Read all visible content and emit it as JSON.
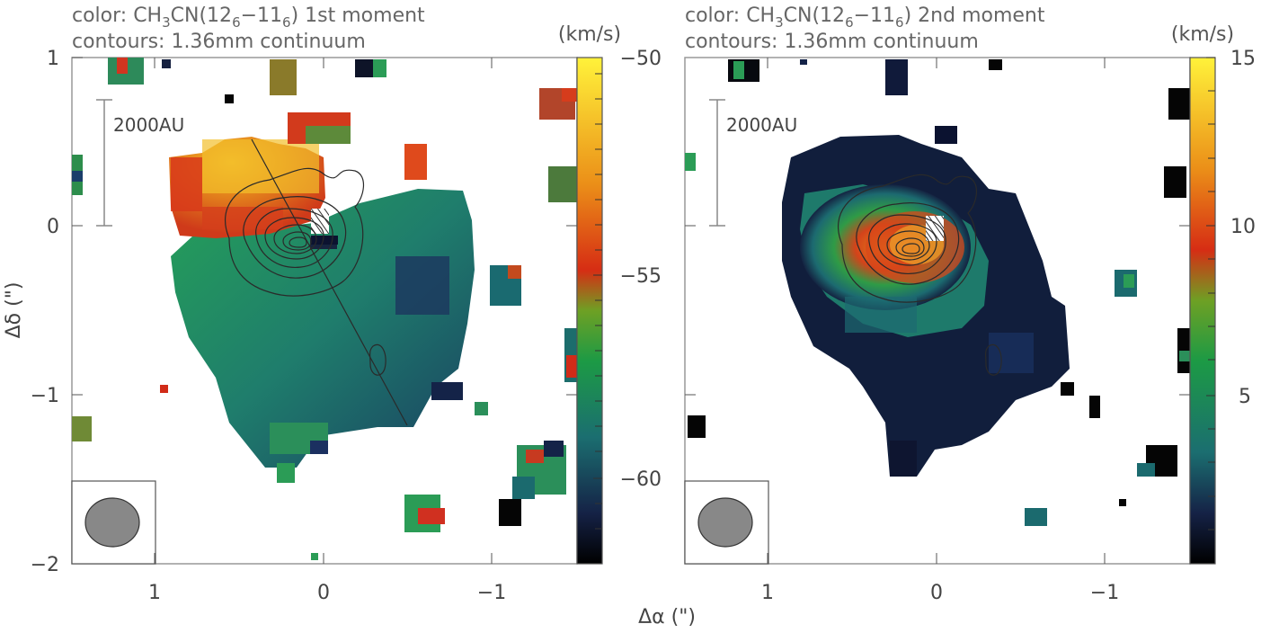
{
  "panel_1": {
    "title_line1": "color: CH3CN(126−116) 1st moment",
    "title_line2": "contours: 1.36mm continuum",
    "title_rich": {
      "pre": "color: CH",
      "s1": "3",
      "mid": "CN(12",
      "s2": "6",
      "dash": "−11",
      "s3": "6",
      "post": ") 1st moment"
    },
    "colorbar_unit": "(km/s)",
    "colorbar_ticks": [
      "−50",
      "−55",
      "−60"
    ],
    "colorbar_range": [
      -50,
      -62
    ],
    "scale_bar_label": "2000AU"
  },
  "panel_2": {
    "title_line1": "color: CH3CN(126−116) 2nd moment",
    "title_line2": "contours: 1.36mm continuum",
    "title_rich": {
      "pre": "color: CH",
      "s1": "3",
      "mid": "CN(12",
      "s2": "6",
      "dash": "−11",
      "s3": "6",
      "post": ") 2nd moment"
    },
    "colorbar_unit": "(km/s)",
    "colorbar_ticks": [
      "15",
      "10",
      "5"
    ],
    "colorbar_range": [
      0,
      15
    ],
    "scale_bar_label": "2000AU"
  },
  "axes": {
    "x_label": "Δα (\")",
    "y_label": "Δδ (\")",
    "x_ticks": [
      "1",
      "0",
      "−1"
    ],
    "y_ticks": [
      "1",
      "0",
      "−1",
      "−2"
    ]
  },
  "colors": {
    "yellow": "#f7d23a",
    "orange": "#e8901f",
    "red": "#d93418",
    "green": "#22944f",
    "teal": "#1f6f72",
    "navy": "#14213b",
    "black": "#050505"
  }
}
